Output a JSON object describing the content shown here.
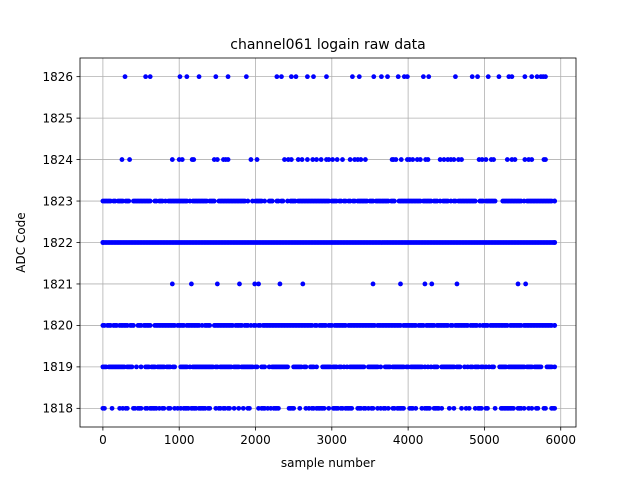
{
  "chart_data": {
    "type": "scatter",
    "title": "channel061 logain raw data",
    "xlabel": "sample number",
    "ylabel": "ADC Code",
    "xlim": [
      -300,
      6200
    ],
    "ylim": [
      1817.55,
      1826.45
    ],
    "xticks": [
      0,
      1000,
      2000,
      3000,
      4000,
      5000,
      6000
    ],
    "yticks": [
      1818,
      1819,
      1820,
      1821,
      1822,
      1823,
      1824,
      1825,
      1826
    ],
    "grid": true,
    "marker_color": "#0000ff",
    "series": [
      {
        "levels": [
          {
            "y": 1818,
            "x_min": 0,
            "x_max": 5920,
            "density": 0.55
          },
          {
            "y": 1819,
            "x_min": 0,
            "x_max": 5920,
            "density": 0.75
          },
          {
            "y": 1820,
            "x_min": 0,
            "x_max": 5920,
            "density": 0.85
          },
          {
            "y": 1822,
            "x_min": 0,
            "x_max": 5920,
            "density": 1.0
          },
          {
            "y": 1823,
            "x_min": 0,
            "x_max": 5920,
            "density": 0.8
          }
        ],
        "points": [
          {
            "y": 1821,
            "x": [
              910,
              1160,
              1500,
              1790,
              1990,
              2040,
              2320,
              2620,
              3540,
              3900,
              4220,
              4310,
              4640,
              5440,
              5540
            ]
          },
          {
            "y": 1824,
            "x": [
              250,
              350,
              910,
              1000,
              1040,
              1170,
              1190,
              1460,
              1500,
              1580,
              1610,
              1640,
              1940,
              2020,
              2380,
              2430,
              2470,
              2560,
              2610,
              2680,
              2750,
              2800,
              2860,
              2930,
              2960,
              3010,
              3070,
              3140,
              3240,
              3300,
              3340,
              3380,
              3440,
              3790,
              3810,
              3840,
              3910,
              3990,
              4020,
              4060,
              4120,
              4160,
              4230,
              4260,
              4420,
              4470,
              4520,
              4560,
              4600,
              4660,
              4700,
              4930,
              4970,
              5020,
              5090,
              5120,
              5300,
              5360,
              5400,
              5530,
              5580,
              5620,
              5780,
              5800
            ]
          },
          {
            "y": 1826,
            "x": [
              290,
              560,
              620,
              1010,
              1100,
              1260,
              1480,
              1640,
              1880,
              2280,
              2340,
              2470,
              2530,
              2680,
              2760,
              2930,
              3270,
              3360,
              3550,
              3650,
              3730,
              3870,
              3950,
              3990,
              4200,
              4270,
              4620,
              4840,
              4910,
              5050,
              5190,
              5320,
              5360,
              5530,
              5620,
              5690,
              5740,
              5770,
              5800
            ]
          }
        ]
      }
    ]
  }
}
